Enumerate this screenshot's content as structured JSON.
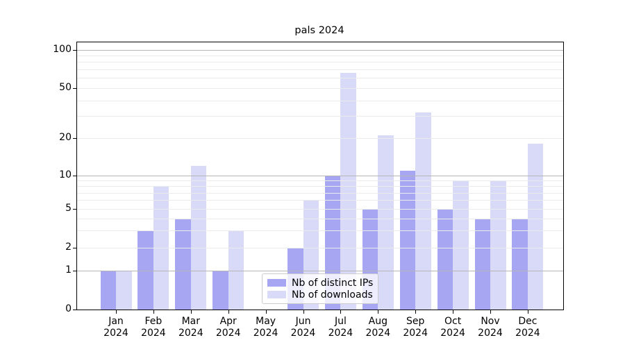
{
  "title": "pals 2024",
  "chart_data": {
    "type": "bar",
    "title": "pals 2024",
    "categories": [
      "Jan 2024",
      "Feb 2024",
      "Mar 2024",
      "Apr 2024",
      "May 2024",
      "Jun 2024",
      "Jul 2024",
      "Aug 2024",
      "Sep 2024",
      "Oct 2024",
      "Nov 2024",
      "Dec 2024"
    ],
    "series": [
      {
        "name": "Nb of distinct IPs",
        "color": "#a6a6f2",
        "values": [
          1,
          3,
          4,
          1,
          0,
          2,
          10,
          5,
          11,
          5,
          4,
          4
        ]
      },
      {
        "name": "Nb of downloads",
        "color": "#d9d9f8",
        "values": [
          1,
          8,
          12,
          3,
          0,
          6,
          66,
          21,
          32,
          9,
          9,
          18
        ]
      }
    ],
    "xlabel": "",
    "ylabel": "",
    "yscale": "pseudo-log",
    "yticks": [
      0,
      1,
      2,
      5,
      10,
      20,
      50,
      100
    ],
    "ylim": [
      0,
      130
    ],
    "grid": "on",
    "legend_position": "lower center"
  },
  "colors": {
    "bar_distinct_ips": "#a6a6f2",
    "bar_downloads": "#d9d9f8",
    "grid_major": "#b5b5b5",
    "grid_minor": "#ebebeb",
    "spine": "#000000",
    "legend_border": "#cccccc"
  }
}
